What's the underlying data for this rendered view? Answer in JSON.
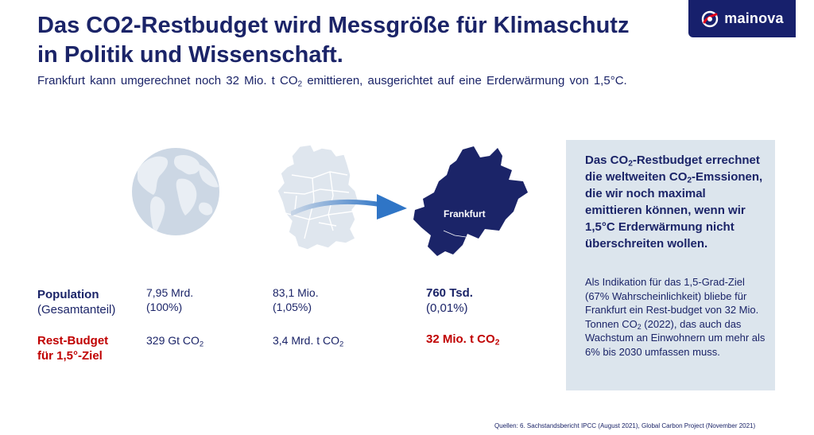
{
  "title": "Das CO2-Restbudget wird Messgröße für Klimaschutz in Politik und Wissenschaft.",
  "subtitle": {
    "before": "Frankfurt kann umgerechnet noch 32 Mio. t CO",
    "sub": "2",
    "after": " emittieren, ausgerichtet auf eine Erderwärmung von 1,5°C."
  },
  "logo": {
    "text": "mainova",
    "icon": "mainova-swirl-icon"
  },
  "map": {
    "city_label": "Frankfurt"
  },
  "rows": {
    "population": {
      "label": "Population",
      "sublabel": "(Gesamtanteil)"
    },
    "rest_budget": {
      "label_line1": "Rest-Budget",
      "label_line2": "für 1,5°-Ziel"
    }
  },
  "columns": {
    "world": {
      "pop": "7,95 Mrd.",
      "share": "(100%)",
      "budget": "329 Gt CO",
      "budget_sub": "2"
    },
    "germany": {
      "pop": "83,1 Mio.",
      "share": "(1,05%)",
      "budget": "3,4 Mrd. t CO",
      "budget_sub": "2"
    },
    "frankfurt": {
      "pop": "760 Tsd.",
      "share": "(0,01%)",
      "budget": "32 Mio. t CO",
      "budget_sub": "2"
    }
  },
  "info": {
    "head_1": "Das CO",
    "head_1_sub": "2",
    "head_2": "-Restbudget errechnet die weltweiten CO",
    "head_2_sub": "2",
    "head_3": "-Emssionen, die wir noch maximal emittieren können, wenn wir 1,5°C Erderwärmung nicht überschreiten wollen.",
    "body_1": "Als Indikation für das 1,5-Grad-Ziel (67% Wahrscheinlichkeit) bliebe für Frankfurt ein Rest-budget von 32 Mio. Tonnen CO",
    "body_sub": "2",
    "body_2": " (2022), das auch das Wachstum an Einwohnern um mehr als 6% bis 2030 umfassen muss."
  },
  "source": "Quellen: 6. Sachstandsbericht IPCC (August 2021), Global Carbon Project (November 2021)"
}
